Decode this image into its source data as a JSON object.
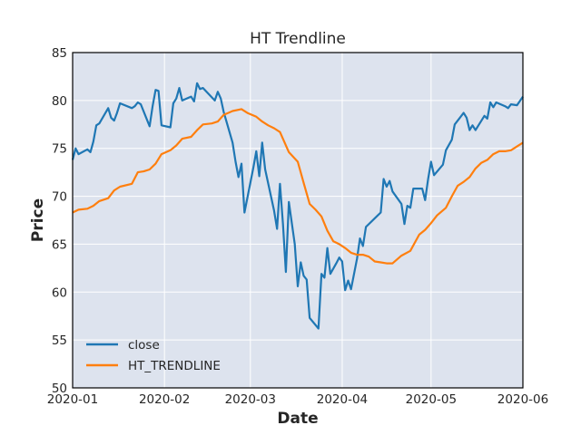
{
  "chart_data": {
    "type": "line",
    "title": "HT Trendline",
    "xlabel": "Date",
    "ylabel": "Price",
    "xlim": [
      "2020-01-01",
      "2020-06-01"
    ],
    "ylim": [
      50,
      85
    ],
    "x_ticks": [
      "2020-01",
      "2020-02",
      "2020-03",
      "2020-04",
      "2020-05",
      "2020-06"
    ],
    "y_ticks": [
      "50",
      "55",
      "60",
      "65",
      "70",
      "75",
      "80",
      "85"
    ],
    "grid": true,
    "legend_position": "lower-left",
    "series": [
      {
        "name": "close",
        "color": "#1f77b4",
        "points": [
          [
            "2020-01-01",
            73.8
          ],
          [
            "2020-01-02",
            75.0
          ],
          [
            "2020-01-03",
            74.4
          ],
          [
            "2020-01-06",
            74.9
          ],
          [
            "2020-01-07",
            74.6
          ],
          [
            "2020-01-08",
            75.7
          ],
          [
            "2020-01-09",
            77.4
          ],
          [
            "2020-01-10",
            77.6
          ],
          [
            "2020-01-13",
            79.2
          ],
          [
            "2020-01-14",
            78.2
          ],
          [
            "2020-01-15",
            77.9
          ],
          [
            "2020-01-16",
            78.7
          ],
          [
            "2020-01-17",
            79.7
          ],
          [
            "2020-01-21",
            79.2
          ],
          [
            "2020-01-22",
            79.4
          ],
          [
            "2020-01-23",
            79.8
          ],
          [
            "2020-01-24",
            79.6
          ],
          [
            "2020-01-27",
            77.3
          ],
          [
            "2020-01-28",
            79.4
          ],
          [
            "2020-01-29",
            81.1
          ],
          [
            "2020-01-30",
            81.0
          ],
          [
            "2020-01-31",
            77.4
          ],
          [
            "2020-02-03",
            77.2
          ],
          [
            "2020-02-04",
            79.7
          ],
          [
            "2020-02-05",
            80.2
          ],
          [
            "2020-02-06",
            81.3
          ],
          [
            "2020-02-07",
            80.0
          ],
          [
            "2020-02-10",
            80.4
          ],
          [
            "2020-02-11",
            79.9
          ],
          [
            "2020-02-12",
            81.8
          ],
          [
            "2020-02-13",
            81.2
          ],
          [
            "2020-02-14",
            81.3
          ],
          [
            "2020-02-18",
            80.0
          ],
          [
            "2020-02-19",
            80.9
          ],
          [
            "2020-02-20",
            80.2
          ],
          [
            "2020-02-21",
            78.8
          ],
          [
            "2020-02-24",
            75.6
          ],
          [
            "2020-02-25",
            73.6
          ],
          [
            "2020-02-26",
            72.0
          ],
          [
            "2020-02-27",
            73.4
          ],
          [
            "2020-02-28",
            68.3
          ],
          [
            "2020-03-02",
            73.0
          ],
          [
            "2020-03-03",
            74.7
          ],
          [
            "2020-03-04",
            72.1
          ],
          [
            "2020-03-05",
            75.6
          ],
          [
            "2020-03-06",
            72.8
          ],
          [
            "2020-03-09",
            68.5
          ],
          [
            "2020-03-10",
            66.6
          ],
          [
            "2020-03-11",
            71.3
          ],
          [
            "2020-03-12",
            67.1
          ],
          [
            "2020-03-13",
            62.1
          ],
          [
            "2020-03-14",
            69.4
          ],
          [
            "2020-03-16",
            65.0
          ],
          [
            "2020-03-17",
            60.6
          ],
          [
            "2020-03-18",
            63.1
          ],
          [
            "2020-03-19",
            61.7
          ],
          [
            "2020-03-20",
            61.3
          ],
          [
            "2020-03-21",
            57.3
          ],
          [
            "2020-03-24",
            56.2
          ],
          [
            "2020-03-25",
            61.9
          ],
          [
            "2020-03-26",
            61.5
          ],
          [
            "2020-03-27",
            64.6
          ],
          [
            "2020-03-28",
            61.9
          ],
          [
            "2020-03-30",
            63.0
          ],
          [
            "2020-03-31",
            63.6
          ],
          [
            "2020-04-01",
            63.2
          ],
          [
            "2020-04-02",
            60.2
          ],
          [
            "2020-04-03",
            61.2
          ],
          [
            "2020-04-04",
            60.3
          ],
          [
            "2020-04-06",
            63.5
          ],
          [
            "2020-04-07",
            65.6
          ],
          [
            "2020-04-08",
            64.8
          ],
          [
            "2020-04-09",
            66.8
          ],
          [
            "2020-04-13",
            68.0
          ],
          [
            "2020-04-14",
            68.3
          ],
          [
            "2020-04-15",
            71.8
          ],
          [
            "2020-04-16",
            71.0
          ],
          [
            "2020-04-17",
            71.6
          ],
          [
            "2020-04-18",
            70.5
          ],
          [
            "2020-04-21",
            69.2
          ],
          [
            "2020-04-22",
            67.1
          ],
          [
            "2020-04-23",
            69.0
          ],
          [
            "2020-04-24",
            68.8
          ],
          [
            "2020-04-25",
            70.8
          ],
          [
            "2020-04-28",
            70.8
          ],
          [
            "2020-04-29",
            69.6
          ],
          [
            "2020-04-30",
            71.8
          ],
          [
            "2020-05-01",
            73.6
          ],
          [
            "2020-05-02",
            72.2
          ],
          [
            "2020-05-05",
            73.3
          ],
          [
            "2020-05-06",
            74.8
          ],
          [
            "2020-05-08",
            75.9
          ],
          [
            "2020-05-09",
            77.5
          ],
          [
            "2020-05-12",
            78.7
          ],
          [
            "2020-05-13",
            78.2
          ],
          [
            "2020-05-14",
            76.9
          ],
          [
            "2020-05-15",
            77.4
          ],
          [
            "2020-05-16",
            76.9
          ],
          [
            "2020-05-19",
            78.4
          ],
          [
            "2020-05-20",
            78.1
          ],
          [
            "2020-05-21",
            79.8
          ],
          [
            "2020-05-22",
            79.3
          ],
          [
            "2020-05-23",
            79.8
          ],
          [
            "2020-05-26",
            79.4
          ],
          [
            "2020-05-27",
            79.2
          ],
          [
            "2020-05-28",
            79.6
          ],
          [
            "2020-05-30",
            79.5
          ],
          [
            "2020-06-01",
            80.4
          ]
        ]
      },
      {
        "name": "HT_TRENDLINE",
        "color": "#ff7f0e",
        "points": [
          [
            "2020-01-01",
            68.3
          ],
          [
            "2020-01-03",
            68.6
          ],
          [
            "2020-01-06",
            68.7
          ],
          [
            "2020-01-08",
            69.0
          ],
          [
            "2020-01-10",
            69.5
          ],
          [
            "2020-01-13",
            69.8
          ],
          [
            "2020-01-15",
            70.6
          ],
          [
            "2020-01-17",
            71.0
          ],
          [
            "2020-01-21",
            71.3
          ],
          [
            "2020-01-23",
            72.5
          ],
          [
            "2020-01-25",
            72.6
          ],
          [
            "2020-01-27",
            72.8
          ],
          [
            "2020-01-29",
            73.4
          ],
          [
            "2020-01-31",
            74.4
          ],
          [
            "2020-02-03",
            74.8
          ],
          [
            "2020-02-05",
            75.3
          ],
          [
            "2020-02-07",
            76.0
          ],
          [
            "2020-02-10",
            76.2
          ],
          [
            "2020-02-12",
            76.9
          ],
          [
            "2020-02-14",
            77.5
          ],
          [
            "2020-02-17",
            77.6
          ],
          [
            "2020-02-19",
            77.8
          ],
          [
            "2020-02-21",
            78.5
          ],
          [
            "2020-02-24",
            78.9
          ],
          [
            "2020-02-27",
            79.1
          ],
          [
            "2020-02-29",
            78.7
          ],
          [
            "2020-03-03",
            78.3
          ],
          [
            "2020-03-05",
            77.8
          ],
          [
            "2020-03-07",
            77.4
          ],
          [
            "2020-03-09",
            77.1
          ],
          [
            "2020-03-11",
            76.7
          ],
          [
            "2020-03-14",
            74.6
          ],
          [
            "2020-03-17",
            73.6
          ],
          [
            "2020-03-19",
            71.4
          ],
          [
            "2020-03-21",
            69.2
          ],
          [
            "2020-03-23",
            68.6
          ],
          [
            "2020-03-25",
            67.9
          ],
          [
            "2020-03-27",
            66.4
          ],
          [
            "2020-03-29",
            65.3
          ],
          [
            "2020-03-31",
            65.0
          ],
          [
            "2020-04-02",
            64.6
          ],
          [
            "2020-04-04",
            64.1
          ],
          [
            "2020-04-06",
            63.9
          ],
          [
            "2020-04-08",
            63.9
          ],
          [
            "2020-04-10",
            63.7
          ],
          [
            "2020-04-12",
            63.2
          ],
          [
            "2020-04-14",
            63.1
          ],
          [
            "2020-04-16",
            63.0
          ],
          [
            "2020-04-18",
            63.0
          ],
          [
            "2020-04-21",
            63.8
          ],
          [
            "2020-04-24",
            64.3
          ],
          [
            "2020-04-27",
            66.0
          ],
          [
            "2020-04-29",
            66.5
          ],
          [
            "2020-05-01",
            67.2
          ],
          [
            "2020-05-03",
            68.0
          ],
          [
            "2020-05-06",
            68.8
          ],
          [
            "2020-05-08",
            70.0
          ],
          [
            "2020-05-10",
            71.1
          ],
          [
            "2020-05-12",
            71.5
          ],
          [
            "2020-05-14",
            72.0
          ],
          [
            "2020-05-16",
            72.9
          ],
          [
            "2020-05-18",
            73.5
          ],
          [
            "2020-05-20",
            73.8
          ],
          [
            "2020-05-22",
            74.4
          ],
          [
            "2020-05-24",
            74.7
          ],
          [
            "2020-05-26",
            74.7
          ],
          [
            "2020-05-28",
            74.8
          ],
          [
            "2020-05-30",
            75.2
          ],
          [
            "2020-06-01",
            75.6
          ]
        ]
      }
    ]
  }
}
